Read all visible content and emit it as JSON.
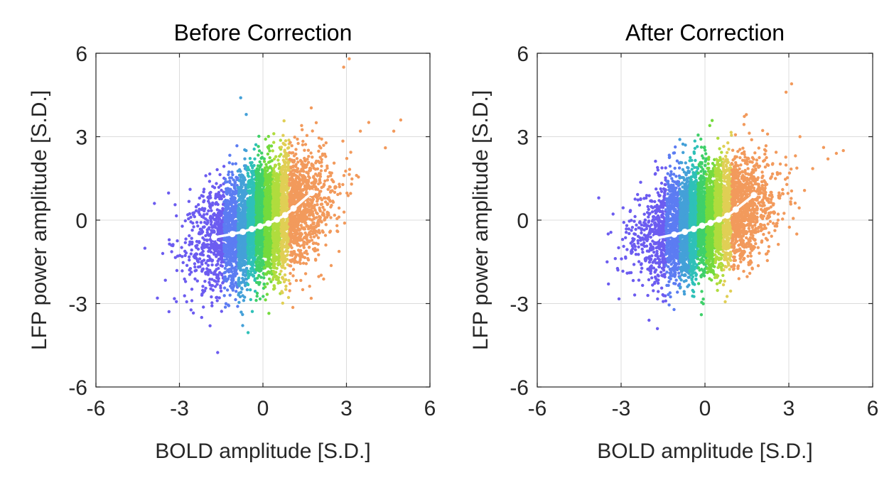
{
  "chart_data": [
    {
      "type": "scatter",
      "title": "Before Correction",
      "xlabel": "BOLD amplitude [S.D.]",
      "ylabel": "LFP power amplitude [S.D.]",
      "xlim": [
        -6,
        6
      ],
      "ylim": [
        -6,
        6
      ],
      "xticks": [
        -6,
        -3,
        0,
        3,
        6
      ],
      "yticks": [
        -6,
        -3,
        0,
        3,
        6
      ],
      "xtick_labels": [
        "-6",
        "-3",
        "0",
        "3",
        "6"
      ],
      "ytick_labels": [
        "-6",
        "-3",
        "0",
        "3",
        "6"
      ],
      "grid": true,
      "point_color_scale": "BOLD amplitude bins (violet → blue → green → yellow → orange)",
      "bin_colors": [
        "#6c5cf0",
        "#5c7cf2",
        "#44a0d8",
        "#2fc0b8",
        "#3fd06a",
        "#74da3e",
        "#b0dc3e",
        "#e0cf55",
        "#f29a5c"
      ],
      "bin_edges": [
        -1.4,
        -0.9,
        -0.55,
        -0.25,
        0.05,
        0.35,
        0.65,
        0.95,
        1.25
      ],
      "cloud": {
        "center": [
          0,
          0
        ],
        "slope": 0.35,
        "spread_x": 1.05,
        "spread_y": 1.0,
        "n_points": 5500
      },
      "outliers": [
        [
          -3.9,
          0.6
        ],
        [
          -3.6,
          -1.2
        ],
        [
          -2.2,
          -3.5
        ],
        [
          -1.9,
          -3.8
        ],
        [
          4.4,
          2.6
        ],
        [
          4.7,
          3.2
        ],
        [
          4.95,
          3.6
        ],
        [
          3.1,
          5.8
        ],
        [
          2.9,
          5.5
        ],
        [
          -0.8,
          4.4
        ],
        [
          -0.6,
          3.8
        ],
        [
          3.5,
          3.2
        ]
      ],
      "binned_means": {
        "x": [
          -1.75,
          -1.1,
          -0.72,
          -0.4,
          -0.1,
          0.2,
          0.5,
          0.8,
          1.1,
          1.75
        ],
        "y": [
          -0.62,
          -0.5,
          -0.42,
          -0.32,
          -0.22,
          -0.12,
          0.02,
          0.18,
          0.42,
          0.98
        ]
      },
      "mean_line_color": "#ffffff"
    },
    {
      "type": "scatter",
      "title": "After Correction",
      "xlabel": "BOLD amplitude [S.D.]",
      "ylabel": "LFP power amplitude [S.D.]",
      "xlim": [
        -6,
        6
      ],
      "ylim": [
        -6,
        6
      ],
      "xticks": [
        -6,
        -3,
        0,
        3,
        6
      ],
      "yticks": [
        -6,
        -3,
        0,
        3,
        6
      ],
      "xtick_labels": [
        "-6",
        "-3",
        "0",
        "3",
        "6"
      ],
      "ytick_labels": [
        "-6",
        "-3",
        "0",
        "3",
        "6"
      ],
      "grid": true,
      "point_color_scale": "BOLD amplitude bins (violet → blue → green → yellow → orange)",
      "bin_colors": [
        "#6c5cf0",
        "#5c7cf2",
        "#44a0d8",
        "#2fc0b8",
        "#3fd06a",
        "#74da3e",
        "#b0dc3e",
        "#e0cf55",
        "#f29a5c"
      ],
      "bin_edges": [
        -1.4,
        -0.9,
        -0.55,
        -0.25,
        0.05,
        0.35,
        0.65,
        0.95,
        1.25
      ],
      "cloud": {
        "center": [
          0,
          0
        ],
        "slope": 0.3,
        "spread_x": 1.05,
        "spread_y": 0.95,
        "n_points": 5500
      },
      "outliers": [
        [
          -3.8,
          0.8
        ],
        [
          -3.5,
          -1.5
        ],
        [
          -2.0,
          -3.6
        ],
        [
          -1.7,
          -3.9
        ],
        [
          4.4,
          2.2
        ],
        [
          4.7,
          2.4
        ],
        [
          4.95,
          2.5
        ],
        [
          3.1,
          4.9
        ],
        [
          2.9,
          4.6
        ],
        [
          -0.9,
          2.9
        ],
        [
          -0.7,
          2.7
        ],
        [
          3.4,
          3.0
        ]
      ],
      "binned_means": {
        "x": [
          -1.75,
          -1.1,
          -0.72,
          -0.4,
          -0.1,
          0.2,
          0.5,
          0.8,
          1.1,
          1.75
        ],
        "y": [
          -0.65,
          -0.52,
          -0.42,
          -0.32,
          -0.2,
          -0.1,
          0.02,
          0.16,
          0.38,
          0.9
        ]
      },
      "mean_line_color": "#ffffff"
    }
  ]
}
